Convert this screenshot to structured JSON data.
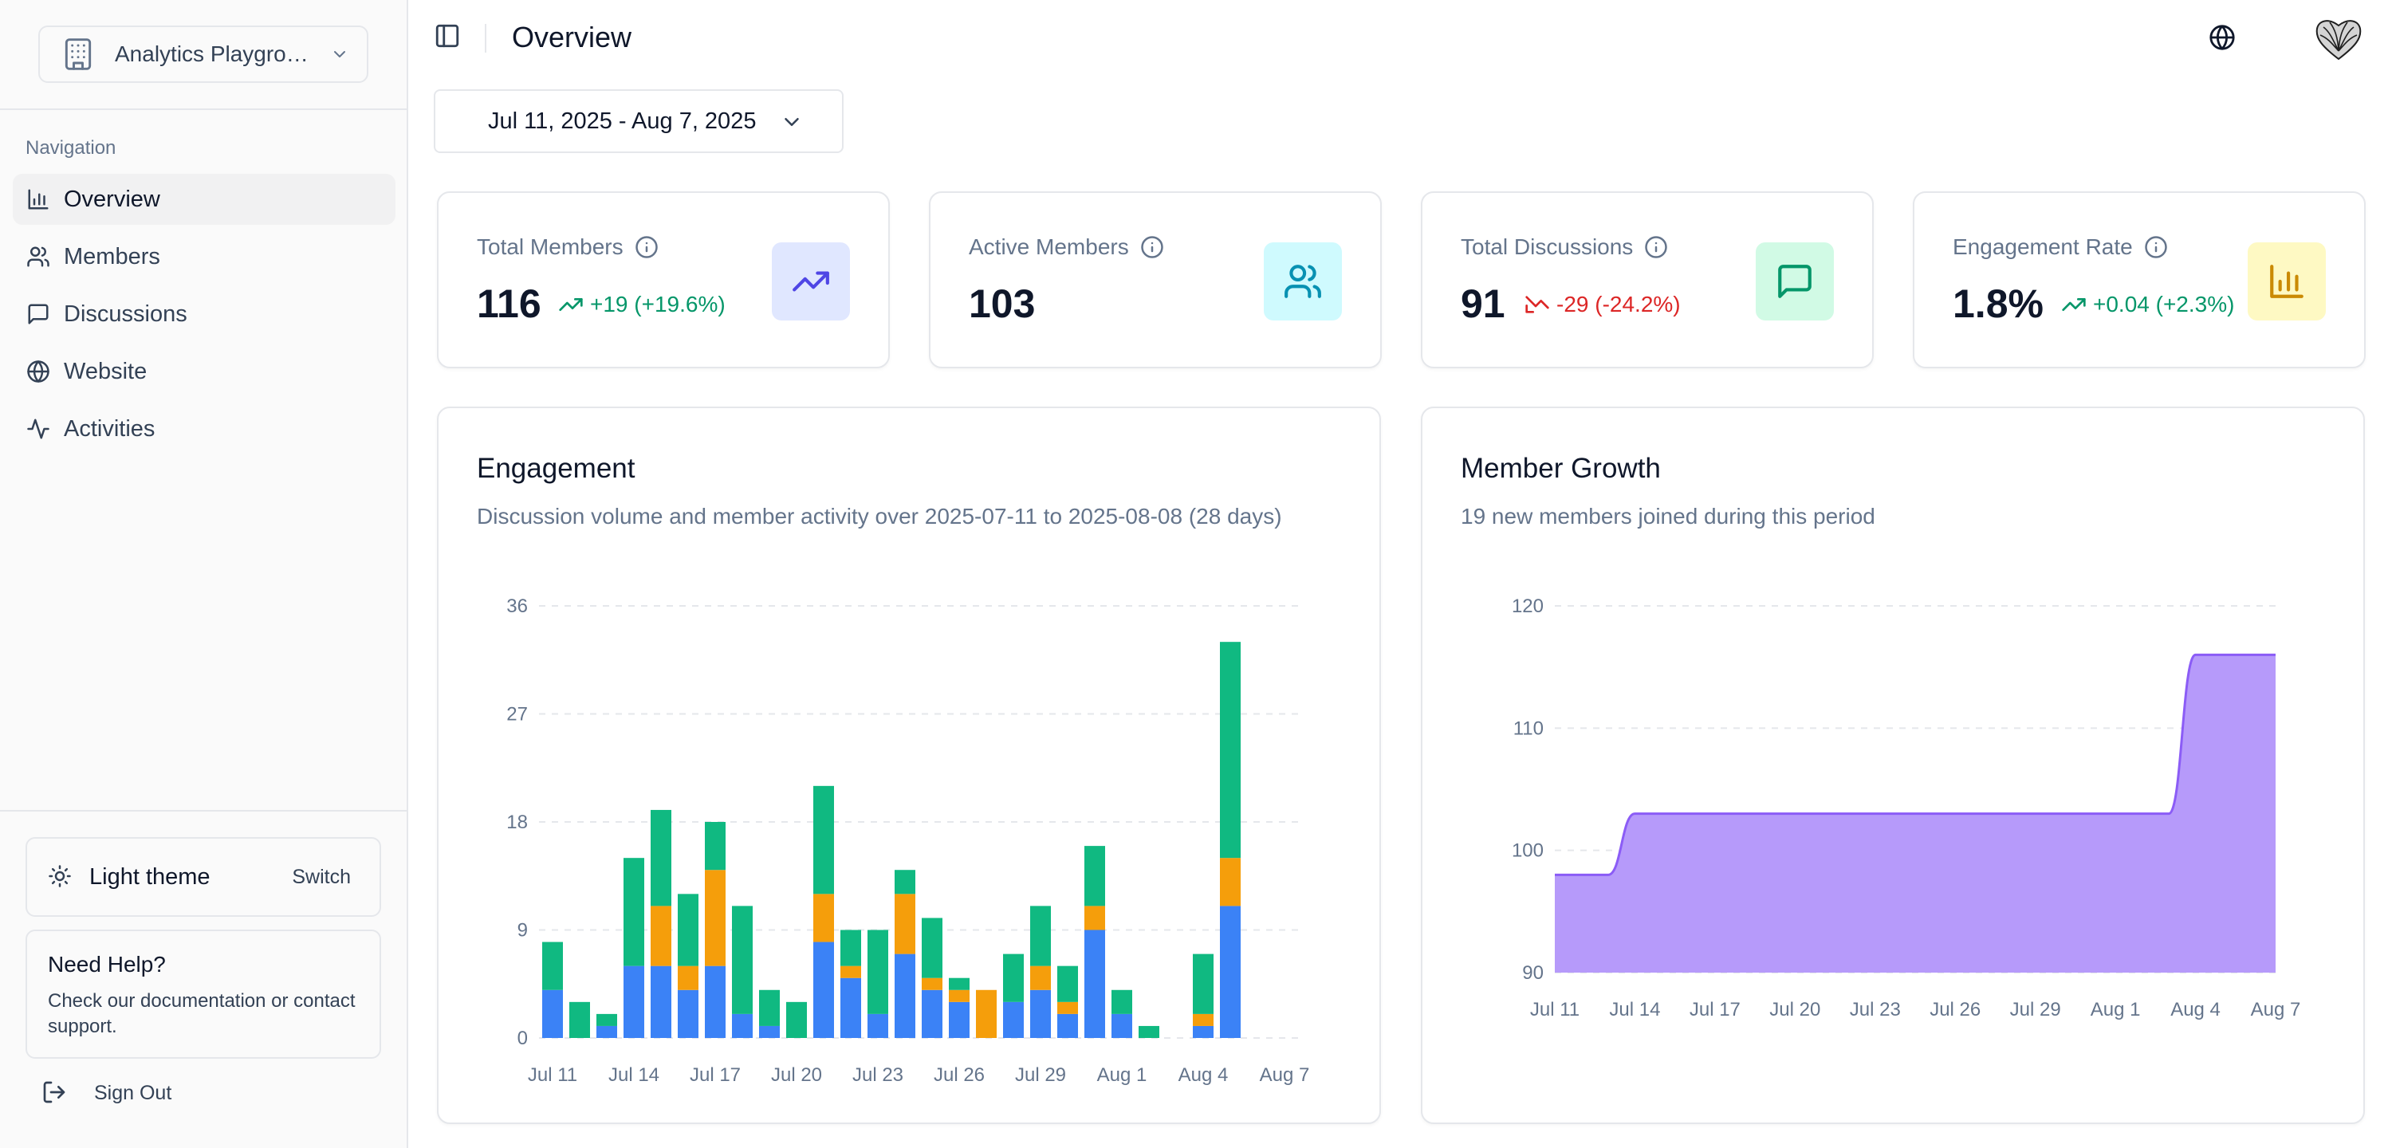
{
  "sidebar": {
    "workspace": "Analytics Playground",
    "nav_heading": "Navigation",
    "items": [
      {
        "label": "Overview",
        "icon": "bar-chart-icon"
      },
      {
        "label": "Members",
        "icon": "users-icon"
      },
      {
        "label": "Discussions",
        "icon": "message-square-icon"
      },
      {
        "label": "Website",
        "icon": "globe-icon"
      },
      {
        "label": "Activities",
        "icon": "activity-icon"
      }
    ],
    "theme_label": "Light theme",
    "theme_switch": "Switch",
    "help_title": "Need Help?",
    "help_text": "Check our documentation or contact support.",
    "sign_out": "Sign Out"
  },
  "header": {
    "title": "Overview"
  },
  "date_range": "Jul 11, 2025 - Aug 7, 2025",
  "kpis": [
    {
      "title": "Total Members",
      "value": "116",
      "delta": "+19 (+19.6%)",
      "trend": "up",
      "color": "#059669",
      "badge_bg": "#e0e7ff",
      "badge_color": "#4f46e5",
      "icon": "trending-up-icon"
    },
    {
      "title": "Active Members",
      "value": "103",
      "delta": "",
      "trend": "none",
      "color": "#059669",
      "badge_bg": "#cffafe",
      "badge_color": "#0891b2",
      "icon": "users-icon"
    },
    {
      "title": "Total Discussions",
      "value": "91",
      "delta": "-29 (-24.2%)",
      "trend": "down",
      "color": "#dc2626",
      "badge_bg": "#d1fae5",
      "badge_color": "#059669",
      "icon": "message-square-icon"
    },
    {
      "title": "Engagement Rate",
      "value": "1.8%",
      "delta": "+0.04 (+2.3%)",
      "trend": "up",
      "color": "#059669",
      "badge_bg": "#fef9c3",
      "badge_color": "#ca8a04",
      "icon": "bar-chart-icon"
    }
  ],
  "engagement": {
    "title": "Engagement",
    "subtitle": "Discussion volume and member activity over 2025-07-11 to 2025-08-08 (28 days)"
  },
  "growth": {
    "title": "Member Growth",
    "subtitle": "19 new members joined during this period"
  },
  "chart_data": [
    {
      "type": "bar",
      "stacked": true,
      "title": "Engagement",
      "ylim": [
        0,
        36
      ],
      "yticks": [
        0,
        9,
        18,
        27,
        36
      ],
      "xtick_labels": [
        "Jul 11",
        "Jul 14",
        "Jul 17",
        "Jul 20",
        "Jul 23",
        "Jul 26",
        "Jul 29",
        "Aug 1",
        "Aug 4",
        "Aug 7"
      ],
      "categories": [
        "Jul 11",
        "Jul 12",
        "Jul 13",
        "Jul 14",
        "Jul 15",
        "Jul 16",
        "Jul 17",
        "Jul 18",
        "Jul 19",
        "Jul 20",
        "Jul 21",
        "Jul 22",
        "Jul 23",
        "Jul 24",
        "Jul 25",
        "Jul 26",
        "Jul 27",
        "Jul 28",
        "Jul 29",
        "Jul 30",
        "Jul 31",
        "Aug 1",
        "Aug 2",
        "Aug 3",
        "Aug 4",
        "Aug 5",
        "Aug 6",
        "Aug 7"
      ],
      "series": [
        {
          "name": "blue",
          "color": "#3b82f6",
          "values": [
            4,
            0,
            1,
            6,
            6,
            4,
            6,
            2,
            1,
            0,
            8,
            5,
            2,
            7,
            4,
            3,
            0,
            3,
            4,
            2,
            9,
            2,
            0,
            0,
            1,
            11,
            0,
            0
          ]
        },
        {
          "name": "orange",
          "color": "#f59e0b",
          "values": [
            0,
            0,
            0,
            0,
            5,
            2,
            8,
            0,
            0,
            0,
            4,
            1,
            0,
            5,
            1,
            1,
            4,
            0,
            2,
            1,
            2,
            0,
            0,
            0,
            1,
            4,
            0,
            0
          ]
        },
        {
          "name": "green",
          "color": "#10b981",
          "values": [
            4,
            3,
            1,
            9,
            8,
            6,
            4,
            9,
            3,
            3,
            9,
            3,
            7,
            2,
            5,
            1,
            0,
            4,
            5,
            3,
            5,
            2,
            1,
            0,
            5,
            18,
            0,
            0
          ]
        }
      ],
      "grid": true
    },
    {
      "type": "area",
      "title": "Member Growth",
      "ylim": [
        90,
        120
      ],
      "yticks": [
        90,
        100,
        110,
        120
      ],
      "xtick_labels": [
        "Jul 11",
        "Jul 14",
        "Jul 17",
        "Jul 20",
        "Jul 23",
        "Jul 26",
        "Jul 29",
        "Aug 1",
        "Aug 4",
        "Aug 7"
      ],
      "x": [
        "Jul 11",
        "Jul 12",
        "Jul 13",
        "Jul 14",
        "Jul 15",
        "Jul 16",
        "Jul 17",
        "Jul 18",
        "Jul 19",
        "Jul 20",
        "Jul 21",
        "Jul 22",
        "Jul 23",
        "Jul 24",
        "Jul 25",
        "Jul 26",
        "Jul 27",
        "Jul 28",
        "Jul 29",
        "Jul 30",
        "Jul 31",
        "Aug 1",
        "Aug 2",
        "Aug 3",
        "Aug 4",
        "Aug 5",
        "Aug 6",
        "Aug 7"
      ],
      "values": [
        98,
        98,
        98,
        103,
        103,
        103,
        103,
        103,
        103,
        103,
        103,
        103,
        103,
        103,
        103,
        103,
        103,
        103,
        103,
        103,
        103,
        103,
        103,
        103,
        116,
        116,
        116,
        116
      ],
      "color": "#8b5cf6",
      "fill": "#b69afa",
      "grid": true
    }
  ]
}
